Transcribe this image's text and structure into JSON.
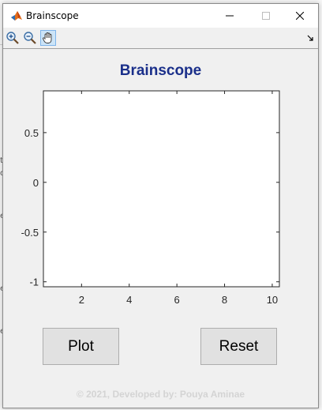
{
  "window": {
    "title": "Brainscope",
    "controls": [
      "minimize-icon",
      "maximize-icon",
      "close-icon"
    ]
  },
  "toolbar": {
    "tools": [
      "zoom-in-icon",
      "zoom-out-icon",
      "pan-hand-icon"
    ],
    "active_tool": "pan-hand-icon"
  },
  "figure": {
    "title": "Brainscope",
    "footer": "© 2021, Developed by: Pouya Aminae"
  },
  "chart_data": {
    "type": "line",
    "title": "",
    "xlabel": "",
    "ylabel": "",
    "xlim": [
      0.4,
      10.3
    ],
    "ylim": [
      -1.05,
      0.92
    ],
    "xticks": [
      "2",
      "4",
      "6",
      "8",
      "10"
    ],
    "yticks": [
      "0.5",
      "0",
      "-0.5",
      "-1"
    ],
    "grid": false,
    "series": []
  },
  "buttons": {
    "plot_label": "Plot",
    "reset_label": "Reset"
  },
  "colors": {
    "title": "#1a2f8a",
    "footer": "#d4d4d4",
    "background": "#f0f0f0"
  }
}
